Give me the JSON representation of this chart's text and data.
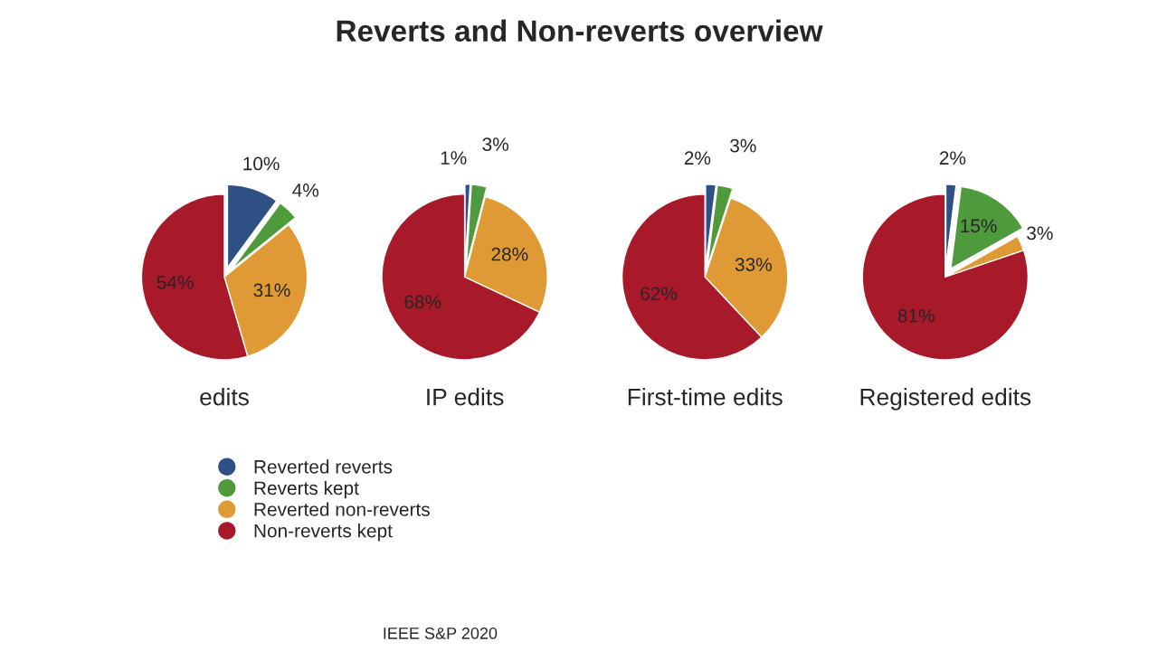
{
  "chart_data": [
    {
      "type": "pie",
      "title": "Reverts and Non-reverts overview",
      "xlabel": "edits",
      "categories": [
        "Reverted reverts",
        "Reverts kept",
        "Reverted non-reverts",
        "Non-reverts kept"
      ],
      "values": [
        10,
        4,
        31,
        54
      ],
      "value_labels": [
        "10%",
        "4%",
        "31%",
        "54%"
      ],
      "colors": [
        "#2e5085",
        "#4f9a3c",
        "#e09a35",
        "#a8192a"
      ],
      "legend": "bottom"
    },
    {
      "type": "pie",
      "xlabel": "IP edits",
      "categories": [
        null,
        null,
        null,
        null
      ],
      "values": [
        1,
        3,
        28,
        68
      ],
      "value_labels": [
        "1%",
        "3%",
        "28%",
        "68%"
      ],
      "colors": [
        "#2e5085",
        "#4f9a3c",
        "#e09a35",
        "#a8192a"
      ]
    },
    {
      "type": "pie",
      "xlabel": "First-time edits",
      "categories": [
        null,
        null,
        null,
        null
      ],
      "values": [
        2,
        3,
        33,
        62
      ],
      "value_labels": [
        "2%",
        "3%",
        "33%",
        "62%"
      ],
      "colors": [
        "#2e5085",
        "#4f9a3c",
        "#e09a35",
        "#a8192a"
      ]
    },
    {
      "type": "pie",
      "xlabel": "Registered edits",
      "categories": [
        null,
        null,
        null,
        null
      ],
      "values": [
        2,
        15,
        3,
        81
      ],
      "value_labels": [
        "2%",
        "15%",
        "3%",
        "81%"
      ],
      "colors": [
        "#2e5085",
        "#4f9a3c",
        "#e09a35",
        "#a8192a"
      ],
      "annotations": [
        "IEEE S&P 2020"
      ]
    }
  ]
}
